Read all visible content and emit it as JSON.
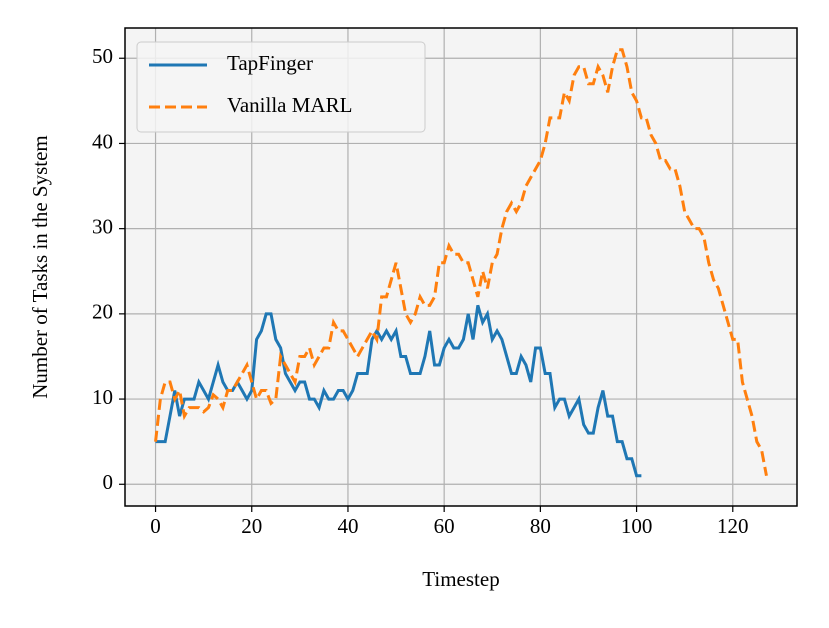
{
  "chart_data": {
    "type": "line",
    "xlabel": "Timestep",
    "ylabel": "Number of Tasks in the System",
    "xlim": [
      -6.35,
      133.35
    ],
    "ylim": [
      -2.55,
      53.55
    ],
    "xticks": [
      0,
      20,
      40,
      60,
      80,
      100,
      120
    ],
    "yticks": [
      0,
      10,
      20,
      30,
      40,
      50
    ],
    "grid": true,
    "legend": "upper left",
    "series": [
      {
        "name": "TapFinger",
        "color": "#1f77b4",
        "style": "solid",
        "x": [
          0,
          1,
          2,
          3,
          4,
          5,
          6,
          7,
          8,
          9,
          10,
          11,
          12,
          13,
          14,
          15,
          16,
          17,
          18,
          19,
          20,
          21,
          22,
          23,
          24,
          25,
          26,
          27,
          28,
          29,
          30,
          31,
          32,
          33,
          34,
          35,
          36,
          37,
          38,
          39,
          40,
          41,
          42,
          43,
          44,
          45,
          46,
          47,
          48,
          49,
          50,
          51,
          52,
          53,
          54,
          55,
          56,
          57,
          58,
          59,
          60,
          61,
          62,
          63,
          64,
          65,
          66,
          67,
          68,
          69,
          70,
          71,
          72,
          73,
          74,
          75,
          76,
          77,
          78,
          79,
          80,
          81,
          82,
          83,
          84,
          85,
          86,
          87,
          88,
          89,
          90,
          91,
          92,
          93,
          94,
          95,
          96,
          97,
          98,
          99,
          100,
          101
        ],
        "values": [
          5,
          5,
          5,
          8,
          11,
          8,
          10,
          10,
          10,
          12,
          11,
          10,
          12,
          14,
          12,
          11,
          11,
          12,
          11,
          10,
          11,
          17,
          18,
          20,
          20,
          17,
          16,
          13,
          12,
          11,
          12,
          12,
          10,
          10,
          9,
          11,
          10,
          10,
          11,
          11,
          10,
          11,
          13,
          13,
          13,
          17,
          18,
          17,
          18,
          17,
          18,
          15,
          15,
          13,
          13,
          13,
          15,
          18,
          14,
          14,
          16,
          17,
          16,
          16,
          17,
          20,
          17,
          21,
          19,
          20,
          17,
          18,
          17,
          15,
          13,
          13,
          15,
          14,
          12,
          16,
          16,
          13,
          13,
          9,
          10,
          10,
          8,
          9,
          10,
          7,
          6,
          6,
          9,
          11,
          8,
          8,
          5,
          5,
          3,
          3,
          1,
          1
        ]
      },
      {
        "name": "Vanilla MARL",
        "color": "#ff7f0e",
        "style": "dashed",
        "x": [
          0,
          1,
          2,
          3,
          4,
          5,
          6,
          7,
          8,
          9,
          10,
          11,
          12,
          13,
          14,
          15,
          16,
          17,
          18,
          19,
          20,
          21,
          22,
          23,
          24,
          25,
          26,
          27,
          28,
          29,
          30,
          31,
          32,
          33,
          34,
          35,
          36,
          37,
          38,
          39,
          40,
          41,
          42,
          43,
          44,
          45,
          46,
          47,
          48,
          49,
          50,
          51,
          52,
          53,
          54,
          55,
          56,
          57,
          58,
          59,
          60,
          61,
          62,
          63,
          64,
          65,
          66,
          67,
          68,
          69,
          70,
          71,
          72,
          73,
          74,
          75,
          76,
          77,
          78,
          79,
          80,
          81,
          82,
          83,
          84,
          85,
          86,
          87,
          88,
          89,
          90,
          91,
          92,
          93,
          94,
          95,
          96,
          97,
          98,
          99,
          100,
          101,
          102,
          103,
          104,
          105,
          106,
          107,
          108,
          109,
          110,
          111,
          112,
          113,
          114,
          115,
          116,
          117,
          118,
          119,
          120,
          121,
          122,
          123,
          124,
          125,
          126,
          127
        ],
        "values": [
          5,
          10,
          12,
          12,
          10,
          11,
          8,
          9,
          9,
          9,
          8.5,
          9,
          10.5,
          10,
          9,
          11,
          11,
          12,
          13,
          14,
          12,
          10,
          11,
          11,
          9.5,
          10,
          15,
          14,
          13,
          12,
          15,
          15,
          16,
          14,
          15,
          16,
          16,
          19,
          18,
          18,
          17,
          16,
          15,
          16,
          17,
          18,
          17,
          22,
          22,
          24,
          26,
          23,
          20,
          19,
          20,
          22,
          21,
          21,
          22,
          26,
          26,
          28,
          27,
          27,
          26,
          26,
          24,
          22,
          25,
          23,
          26,
          27,
          30,
          32,
          33,
          32,
          33,
          35,
          36,
          37,
          38,
          40,
          43,
          43,
          43,
          46,
          45,
          48,
          49,
          49,
          47,
          47,
          49,
          48,
          46,
          49,
          51,
          51,
          49,
          46,
          45,
          43,
          43,
          41,
          40,
          38,
          38,
          37,
          37,
          35,
          32,
          31,
          30,
          30,
          29,
          26,
          24,
          23,
          21,
          19,
          17,
          17,
          12,
          10,
          8,
          5,
          4,
          1
        ]
      }
    ]
  }
}
